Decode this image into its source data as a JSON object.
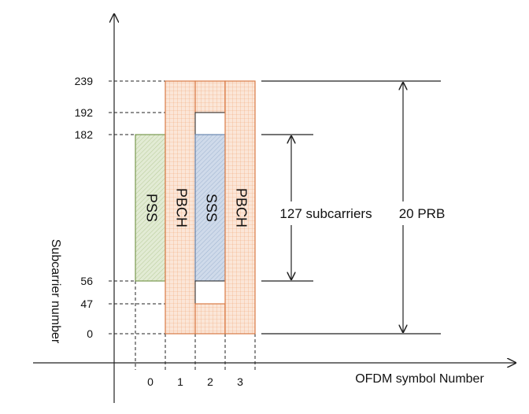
{
  "y_axis": {
    "label": "Subcarrier number",
    "ticks": [
      "239",
      "192",
      "182",
      "56",
      "47",
      "0"
    ]
  },
  "x_axis": {
    "label": "OFDM symbol Number",
    "ticks": [
      "0",
      "1",
      "2",
      "3"
    ]
  },
  "blocks": {
    "pss": "PSS",
    "pbch1": "PBCH",
    "sss": "SSS",
    "pbch2": "PBCH"
  },
  "brackets": {
    "subcarriers": "127 subcarriers",
    "prb": "20 PRB"
  },
  "colors": {
    "pss_fill": "#e2ebd4",
    "pss_stroke": "#7a9a50",
    "sss_fill": "#cfdaea",
    "sss_stroke": "#6a88b0",
    "pbch_fill": "#fbe6d8",
    "pbch_grid": "#f0a878",
    "pbch_stroke": "#d97a45",
    "axis": "#222222"
  }
}
